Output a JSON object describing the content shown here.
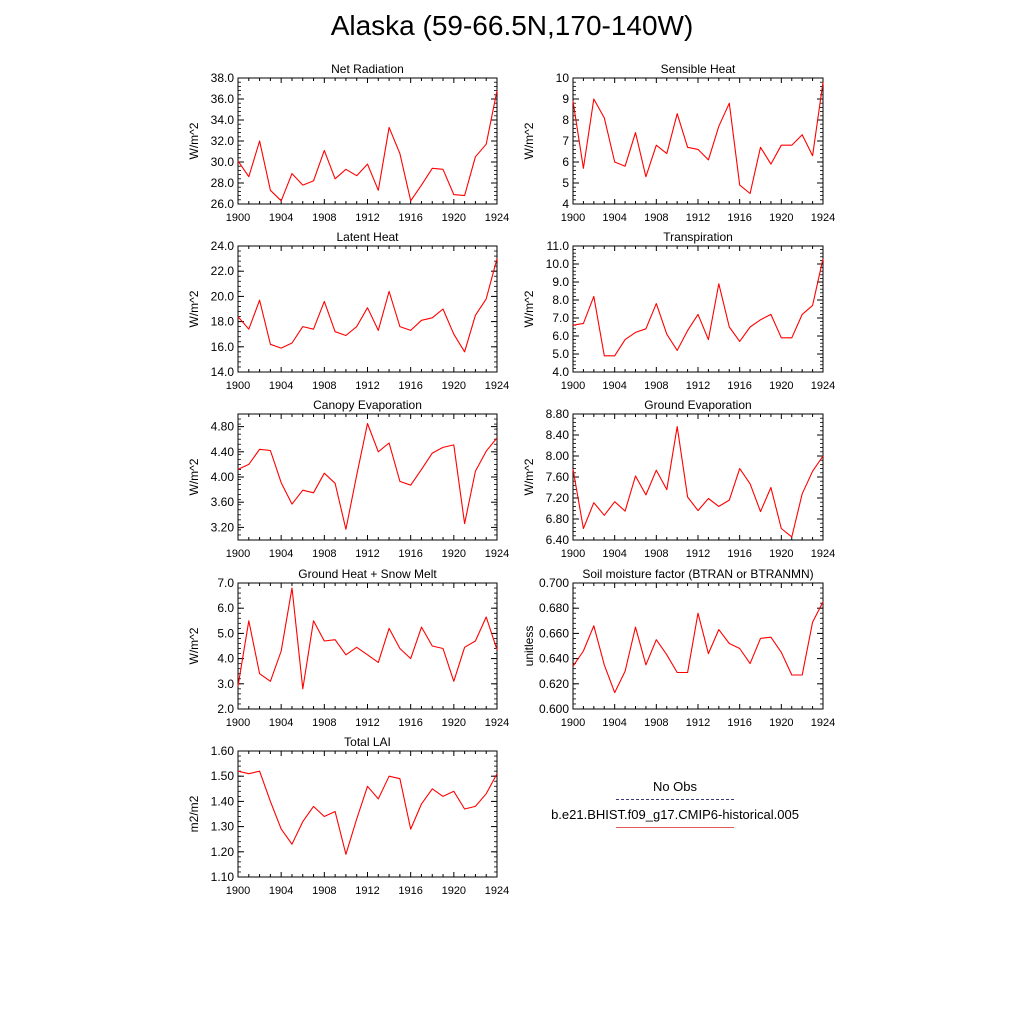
{
  "title": "Alaska (59-66.5N,170-140W)",
  "colors": {
    "series": "#ff0000",
    "axis": "#000000",
    "obs": "#3a3a7a",
    "model_legend": "#e85a5a"
  },
  "legend": {
    "obs_label": "No Obs",
    "model_label": "b.e21.BHIST.f09_g17.CMIP6-historical.005"
  },
  "chart_data": [
    {
      "type": "line",
      "title": "Net Radiation",
      "ylabel": "W/m^2",
      "xlabel": "",
      "xlim": [
        1900,
        1924
      ],
      "ylim": [
        26,
        38
      ],
      "xticks": [
        "1900",
        "1904",
        "1908",
        "1912",
        "1916",
        "1920",
        "1924"
      ],
      "yticks": [
        "26.0",
        "28.0",
        "30.0",
        "32.0",
        "34.0",
        "36.0",
        "38.0"
      ],
      "x": [
        1900,
        1901,
        1902,
        1903,
        1904,
        1905,
        1906,
        1907,
        1908,
        1909,
        1910,
        1911,
        1912,
        1913,
        1914,
        1915,
        1916,
        1917,
        1918,
        1919,
        1920,
        1921,
        1922,
        1923,
        1924
      ],
      "series": [
        {
          "values": [
            30.1,
            28.6,
            32.0,
            27.3,
            26.3,
            28.9,
            27.8,
            28.2,
            31.1,
            28.4,
            29.3,
            28.7,
            29.8,
            27.3,
            33.3,
            30.8,
            26.3,
            27.8,
            29.4,
            29.3,
            26.9,
            26.8,
            30.5,
            31.7,
            36.8
          ]
        }
      ]
    },
    {
      "type": "line",
      "title": "Sensible Heat",
      "ylabel": "W/m^2",
      "xlabel": "",
      "xlim": [
        1900,
        1924
      ],
      "ylim": [
        4,
        10
      ],
      "xticks": [
        "1900",
        "1904",
        "1908",
        "1912",
        "1916",
        "1920",
        "1924"
      ],
      "yticks": [
        "4",
        "5",
        "6",
        "7",
        "8",
        "9",
        "10"
      ],
      "x": [
        1900,
        1901,
        1902,
        1903,
        1904,
        1905,
        1906,
        1907,
        1908,
        1909,
        1910,
        1911,
        1912,
        1913,
        1914,
        1915,
        1916,
        1917,
        1918,
        1919,
        1920,
        1921,
        1922,
        1923,
        1924
      ],
      "series": [
        {
          "values": [
            8.9,
            5.7,
            9.0,
            8.1,
            6.0,
            5.8,
            7.4,
            5.3,
            6.8,
            6.4,
            8.3,
            6.7,
            6.6,
            6.1,
            7.7,
            8.8,
            4.9,
            4.5,
            6.7,
            5.9,
            6.8,
            6.8,
            7.3,
            6.3,
            9.8
          ]
        }
      ]
    },
    {
      "type": "line",
      "title": "Latent Heat",
      "ylabel": "W/m^2",
      "xlabel": "",
      "xlim": [
        1900,
        1924
      ],
      "ylim": [
        14,
        24
      ],
      "xticks": [
        "1900",
        "1904",
        "1908",
        "1912",
        "1916",
        "1920",
        "1924"
      ],
      "yticks": [
        "14.0",
        "16.0",
        "18.0",
        "20.0",
        "22.0",
        "24.0"
      ],
      "x": [
        1900,
        1901,
        1902,
        1903,
        1904,
        1905,
        1906,
        1907,
        1908,
        1909,
        1910,
        1911,
        1912,
        1913,
        1914,
        1915,
        1916,
        1917,
        1918,
        1919,
        1920,
        1921,
        1922,
        1923,
        1924
      ],
      "series": [
        {
          "values": [
            18.4,
            17.4,
            19.7,
            16.2,
            15.9,
            16.3,
            17.6,
            17.4,
            19.6,
            17.2,
            16.9,
            17.6,
            19.1,
            17.3,
            20.4,
            17.6,
            17.3,
            18.1,
            18.3,
            19.0,
            17.0,
            15.6,
            18.5,
            19.8,
            23.0
          ]
        }
      ]
    },
    {
      "type": "line",
      "title": "Transpiration",
      "ylabel": "W/m^2",
      "xlabel": "",
      "xlim": [
        1900,
        1924
      ],
      "ylim": [
        4,
        11
      ],
      "xticks": [
        "1900",
        "1904",
        "1908",
        "1912",
        "1916",
        "1920",
        "1924"
      ],
      "yticks": [
        "4.0",
        "5.0",
        "6.0",
        "7.0",
        "8.0",
        "9.0",
        "10.0",
        "11.0"
      ],
      "x": [
        1900,
        1901,
        1902,
        1903,
        1904,
        1905,
        1906,
        1907,
        1908,
        1909,
        1910,
        1911,
        1912,
        1913,
        1914,
        1915,
        1916,
        1917,
        1918,
        1919,
        1920,
        1921,
        1922,
        1923,
        1924
      ],
      "series": [
        {
          "values": [
            6.6,
            6.7,
            8.2,
            4.9,
            4.9,
            5.8,
            6.2,
            6.4,
            7.8,
            6.1,
            5.2,
            6.3,
            7.2,
            5.8,
            8.9,
            6.5,
            5.7,
            6.5,
            6.9,
            7.2,
            5.9,
            5.9,
            7.2,
            7.7,
            10.3
          ]
        }
      ]
    },
    {
      "type": "line",
      "title": "Canopy Evaporation",
      "ylabel": "W/m^2",
      "xlabel": "",
      "xlim": [
        1900,
        1924
      ],
      "ylim": [
        3.0,
        5.0
      ],
      "xticks": [
        "1900",
        "1904",
        "1908",
        "1912",
        "1916",
        "1920",
        "1924"
      ],
      "yticks": [
        "3.20",
        "3.60",
        "4.00",
        "4.40",
        "4.80"
      ],
      "x": [
        1900,
        1901,
        1902,
        1903,
        1904,
        1905,
        1906,
        1907,
        1908,
        1909,
        1910,
        1911,
        1912,
        1913,
        1914,
        1915,
        1916,
        1917,
        1918,
        1919,
        1920,
        1921,
        1922,
        1923,
        1924
      ],
      "series": [
        {
          "values": [
            4.12,
            4.2,
            4.44,
            4.42,
            3.91,
            3.57,
            3.79,
            3.75,
            4.06,
            3.9,
            3.17,
            4.03,
            4.85,
            4.4,
            4.54,
            3.93,
            3.87,
            4.12,
            4.38,
            4.47,
            4.51,
            3.26,
            4.09,
            4.41,
            4.62
          ]
        }
      ]
    },
    {
      "type": "line",
      "title": "Ground Evaporation",
      "ylabel": "W/m^2",
      "xlabel": "",
      "xlim": [
        1900,
        1924
      ],
      "ylim": [
        6.4,
        8.8
      ],
      "xticks": [
        "1900",
        "1904",
        "1908",
        "1912",
        "1916",
        "1920",
        "1924"
      ],
      "yticks": [
        "6.40",
        "6.80",
        "7.20",
        "7.60",
        "8.00",
        "8.40",
        "8.80"
      ],
      "x": [
        1900,
        1901,
        1902,
        1903,
        1904,
        1905,
        1906,
        1907,
        1908,
        1909,
        1910,
        1911,
        1912,
        1913,
        1914,
        1915,
        1916,
        1917,
        1918,
        1919,
        1920,
        1921,
        1922,
        1923,
        1924
      ],
      "series": [
        {
          "values": [
            7.75,
            6.62,
            7.11,
            6.87,
            7.13,
            6.95,
            7.62,
            7.26,
            7.73,
            7.36,
            8.56,
            7.22,
            6.96,
            7.19,
            7.04,
            7.16,
            7.76,
            7.47,
            6.94,
            7.4,
            6.62,
            6.46,
            7.28,
            7.71,
            8.0
          ]
        }
      ]
    },
    {
      "type": "line",
      "title": "Ground Heat + Snow Melt",
      "ylabel": "W/m^2",
      "xlabel": "",
      "xlim": [
        1900,
        1924
      ],
      "ylim": [
        2,
        7
      ],
      "xticks": [
        "1900",
        "1904",
        "1908",
        "1912",
        "1916",
        "1920",
        "1924"
      ],
      "yticks": [
        "2.0",
        "3.0",
        "4.0",
        "5.0",
        "6.0",
        "7.0"
      ],
      "x": [
        1900,
        1901,
        1902,
        1903,
        1904,
        1905,
        1906,
        1907,
        1908,
        1909,
        1910,
        1911,
        1912,
        1913,
        1914,
        1915,
        1916,
        1917,
        1918,
        1919,
        1920,
        1921,
        1922,
        1923,
        1924
      ],
      "series": [
        {
          "values": [
            2.9,
            5.5,
            3.4,
            3.1,
            4.3,
            6.8,
            2.8,
            5.5,
            4.7,
            4.75,
            4.15,
            4.45,
            4.15,
            3.85,
            5.2,
            4.4,
            4.0,
            5.25,
            4.5,
            4.4,
            3.1,
            4.45,
            4.7,
            5.65,
            4.35
          ]
        }
      ]
    },
    {
      "type": "line",
      "title": "Soil moisture factor (BTRAN or BTRANMN)",
      "ylabel": "unitless",
      "xlabel": "",
      "xlim": [
        1900,
        1924
      ],
      "ylim": [
        0.6,
        0.7
      ],
      "xticks": [
        "1900",
        "1904",
        "1908",
        "1912",
        "1916",
        "1920",
        "1924"
      ],
      "yticks": [
        "0.600",
        "0.620",
        "0.640",
        "0.660",
        "0.680",
        "0.700"
      ],
      "x": [
        1900,
        1901,
        1902,
        1903,
        1904,
        1905,
        1906,
        1907,
        1908,
        1909,
        1910,
        1911,
        1912,
        1913,
        1914,
        1915,
        1916,
        1917,
        1918,
        1919,
        1920,
        1921,
        1922,
        1923,
        1924
      ],
      "series": [
        {
          "values": [
            0.634,
            0.646,
            0.666,
            0.635,
            0.613,
            0.63,
            0.665,
            0.635,
            0.655,
            0.643,
            0.629,
            0.629,
            0.676,
            0.644,
            0.663,
            0.652,
            0.648,
            0.636,
            0.656,
            0.657,
            0.645,
            0.627,
            0.627,
            0.669,
            0.685
          ]
        }
      ]
    },
    {
      "type": "line",
      "title": "Total LAI",
      "ylabel": "m2/m2",
      "xlabel": "",
      "xlim": [
        1900,
        1924
      ],
      "ylim": [
        1.1,
        1.6
      ],
      "xticks": [
        "1900",
        "1904",
        "1908",
        "1912",
        "1916",
        "1920",
        "1924"
      ],
      "yticks": [
        "1.10",
        "1.20",
        "1.30",
        "1.40",
        "1.50",
        "1.60"
      ],
      "x": [
        1900,
        1901,
        1902,
        1903,
        1904,
        1905,
        1906,
        1907,
        1908,
        1909,
        1910,
        1911,
        1912,
        1913,
        1914,
        1915,
        1916,
        1917,
        1918,
        1919,
        1920,
        1921,
        1922,
        1923,
        1924
      ],
      "series": [
        {
          "values": [
            1.52,
            1.51,
            1.52,
            1.4,
            1.29,
            1.23,
            1.32,
            1.38,
            1.34,
            1.36,
            1.19,
            1.33,
            1.46,
            1.41,
            1.5,
            1.49,
            1.29,
            1.39,
            1.45,
            1.42,
            1.44,
            1.37,
            1.38,
            1.43,
            1.51
          ]
        }
      ]
    }
  ]
}
